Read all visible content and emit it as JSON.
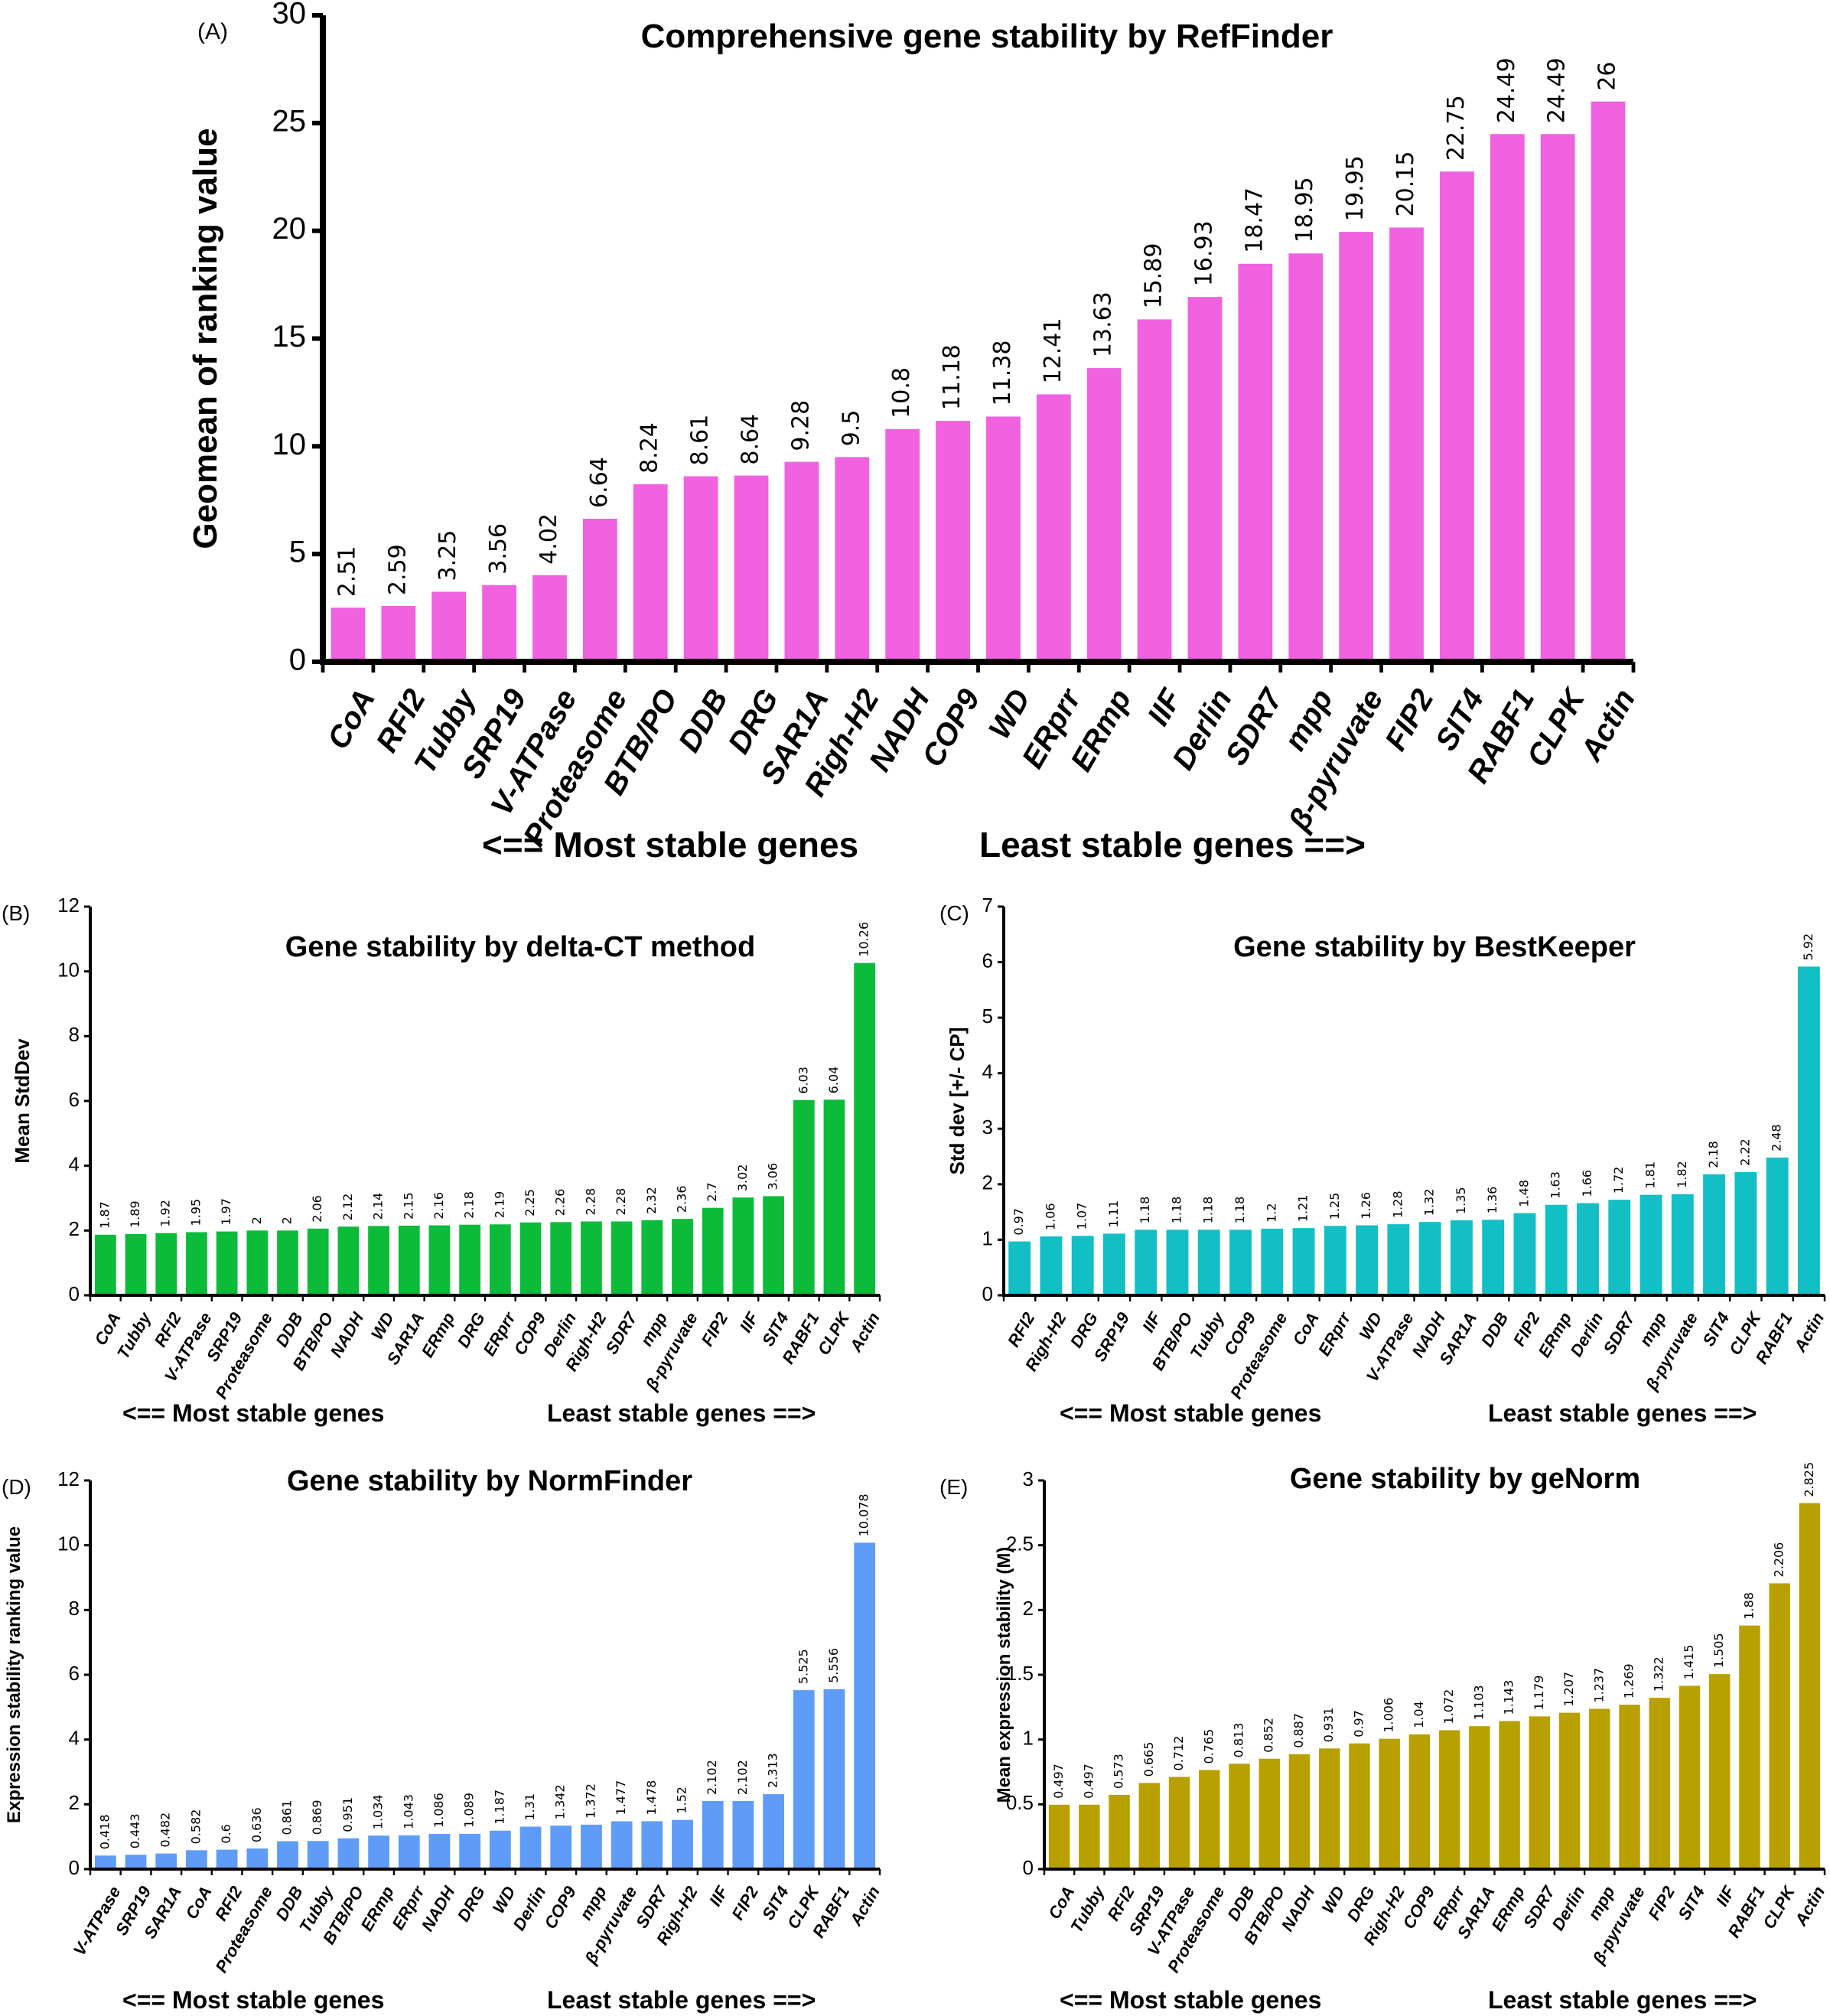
{
  "figure": {
    "footer_left": "<== Most stable genes",
    "footer_right": "Least stable genes ==>"
  },
  "chart_data": [
    {
      "id": "A",
      "panel_label": "(A)",
      "type": "bar",
      "title": "Comprehensive gene stability by RefFinder",
      "xlabel": "",
      "ylabel": "Geomean of ranking value",
      "ylim": [
        0,
        30
      ],
      "yticks": [
        0,
        5,
        10,
        15,
        20,
        25,
        30
      ],
      "grid": false,
      "color": "#f062e0",
      "categories": [
        "CoA",
        "RFI2",
        "Tubby",
        "SRP19",
        "V-ATPase",
        "Proteasome",
        "BTB/PO",
        "DDB",
        "DRG",
        "SAR1A",
        "Righ-H2",
        "NADH",
        "COP9",
        "WD",
        "ERprr",
        "ERmp",
        "IIF",
        "Derlin",
        "SDR7",
        "mpp",
        "β-pyruvate",
        "FIP2",
        "SIT4",
        "RABF1",
        "CLPK",
        "Actin"
      ],
      "values": [
        2.51,
        2.59,
        3.25,
        3.56,
        4.02,
        6.64,
        8.24,
        8.61,
        8.64,
        9.28,
        9.5,
        10.8,
        11.18,
        11.38,
        12.41,
        13.63,
        15.89,
        16.93,
        18.47,
        18.95,
        19.95,
        20.15,
        22.75,
        24.49,
        24.49,
        26
      ],
      "labels": [
        "2.51",
        "2.59",
        "3.25",
        "3.56",
        "4.02",
        "6.64",
        "8.24",
        "8.61",
        "8.64",
        "9.28",
        "9.5",
        "10.8",
        "11.18",
        "11.38",
        "12.41",
        "13.63",
        "15.89",
        "16.93",
        "18.47",
        "18.95",
        "19.95",
        "20.15",
        "22.75",
        "24.49",
        "24.49",
        "26"
      ]
    },
    {
      "id": "B",
      "panel_label": "(B)",
      "type": "bar",
      "title": "Gene stability by delta-CT method",
      "xlabel": "",
      "ylabel": "Mean StdDev",
      "ylim": [
        0,
        12
      ],
      "yticks": [
        0,
        2,
        4,
        6,
        8,
        10,
        12
      ],
      "grid": false,
      "color": "#0dbb3a",
      "categories": [
        "CoA",
        "Tubby",
        "RFI2",
        "V-ATPase",
        "SRP19",
        "Proteasome",
        "DDB",
        "BTB/PO",
        "NADH",
        "WD",
        "SAR1A",
        "ERmp",
        "DRG",
        "ERprr",
        "COP9",
        "Derlin",
        "Righ-H2",
        "SDR7",
        "mpp",
        "β-pyruvate",
        "FIP2",
        "IIF",
        "SIT4",
        "RABF1",
        "CLPK",
        "Actin"
      ],
      "values": [
        1.87,
        1.89,
        1.92,
        1.95,
        1.97,
        2,
        2,
        2.06,
        2.12,
        2.14,
        2.15,
        2.16,
        2.18,
        2.19,
        2.25,
        2.26,
        2.28,
        2.28,
        2.32,
        2.36,
        2.7,
        3.02,
        3.06,
        6.03,
        6.04,
        10.26
      ],
      "labels": [
        "1.87",
        "1.89",
        "1.92",
        "1.95",
        "1.97",
        "2",
        "2",
        "2.06",
        "2.12",
        "2.14",
        "2.15",
        "2.16",
        "2.18",
        "2.19",
        "2.25",
        "2.26",
        "2.28",
        "2.28",
        "2.32",
        "2.36",
        "2.7",
        "3.02",
        "3.06",
        "6.03",
        "6.04",
        "10.26"
      ]
    },
    {
      "id": "C",
      "panel_label": "(C)",
      "type": "bar",
      "title": "Gene stability by BestKeeper",
      "xlabel": "",
      "ylabel": "Std dev [+/- CP]",
      "ylim": [
        0,
        7
      ],
      "yticks": [
        0,
        1,
        2,
        3,
        4,
        5,
        6,
        7
      ],
      "grid": false,
      "color": "#12bfc4",
      "categories": [
        "RFI2",
        "Righ-H2",
        "DRG",
        "SRP19",
        "IIF",
        "BTB/PO",
        "Tubby",
        "COP9",
        "Proteasome",
        "CoA",
        "ERprr",
        "WD",
        "V-ATPase",
        "NADH",
        "SAR1A",
        "DDB",
        "FIP2",
        "ERmp",
        "Derlin",
        "SDR7",
        "mpp",
        "β-pyruvate",
        "SIT4",
        "CLPK",
        "RABF1",
        "Actin"
      ],
      "values": [
        0.97,
        1.06,
        1.07,
        1.11,
        1.18,
        1.18,
        1.18,
        1.18,
        1.2,
        1.21,
        1.25,
        1.26,
        1.28,
        1.32,
        1.35,
        1.36,
        1.48,
        1.63,
        1.66,
        1.72,
        1.81,
        1.82,
        2.18,
        2.22,
        2.48,
        5.92
      ],
      "labels": [
        "0.97",
        "1.06",
        "1.07",
        "1.11",
        "1.18",
        "1.18",
        "1.18",
        "1.18",
        "1.2",
        "1.21",
        "1.25",
        "1.26",
        "1.28",
        "1.32",
        "1.35",
        "1.36",
        "1.48",
        "1.63",
        "1.66",
        "1.72",
        "1.81",
        "1.82",
        "2.18",
        "2.22",
        "2.48",
        "5.92"
      ]
    },
    {
      "id": "D",
      "panel_label": "(D)",
      "type": "bar",
      "title": "Gene stability by NormFinder",
      "xlabel": "",
      "ylabel": "Expression stability ranking value",
      "ylim": [
        0,
        12
      ],
      "yticks": [
        0,
        2,
        4,
        6,
        8,
        10,
        12
      ],
      "grid": false,
      "color": "#5f9cf8",
      "categories": [
        "V-ATPase",
        "SRP19",
        "SAR1A",
        "CoA",
        "RFI2",
        "Proteasome",
        "DDB",
        "Tubby",
        "BTB/PO",
        "ERmp",
        "ERprr",
        "NADH",
        "DRG",
        "WD",
        "Derlin",
        "COP9",
        "mpp",
        "β-pyruvate",
        "SDR7",
        "Righ-H2",
        "IIF",
        "FIP2",
        "SIT4",
        "CLPK",
        "RABF1",
        "Actin"
      ],
      "values": [
        0.418,
        0.443,
        0.482,
        0.582,
        0.6,
        0.636,
        0.861,
        0.869,
        0.951,
        1.034,
        1.043,
        1.086,
        1.089,
        1.187,
        1.31,
        1.342,
        1.372,
        1.477,
        1.478,
        1.52,
        2.102,
        2.102,
        2.313,
        5.525,
        5.556,
        10.078
      ],
      "labels": [
        "0.418",
        "0.443",
        "0.482",
        "0.582",
        "0.6",
        "0.636",
        "0.861",
        "0.869",
        "0.951",
        "1.034",
        "1.043",
        "1.086",
        "1.089",
        "1.187",
        "1.31",
        "1.342",
        "1.372",
        "1.477",
        "1.478",
        "1.52",
        "2.102",
        "2.102",
        "2.313",
        "5.525",
        "5.556",
        "10.078"
      ]
    },
    {
      "id": "E",
      "panel_label": "(E)",
      "type": "bar",
      "title": "Gene stability by geNorm",
      "xlabel": "",
      "ylabel": "Mean expression stability (M)",
      "ylim": [
        0,
        3
      ],
      "yticks": [
        0,
        0.5,
        1,
        1.5,
        2,
        2.5,
        3
      ],
      "grid": false,
      "color": "#b8a000",
      "categories": [
        "CoA",
        "Tubby",
        "RFI2",
        "SRP19",
        "V-ATPase",
        "Proteasome",
        "DDB",
        "BTB/PO",
        "NADH",
        "WD",
        "DRG",
        "Righ-H2",
        "COP9",
        "ERprr",
        "SAR1A",
        "ERmp",
        "SDR7",
        "Derlin",
        "mpp",
        "β-pyruvate",
        "FIP2",
        "SIT4",
        "IIF",
        "RABF1",
        "CLPK",
        "Actin"
      ],
      "values": [
        0.497,
        0.497,
        0.573,
        0.665,
        0.712,
        0.765,
        0.813,
        0.852,
        0.887,
        0.931,
        0.97,
        1.006,
        1.04,
        1.072,
        1.103,
        1.143,
        1.179,
        1.207,
        1.237,
        1.269,
        1.322,
        1.415,
        1.505,
        1.88,
        2.206,
        2.825
      ],
      "labels": [
        "0.497",
        "0.497",
        "0.573",
        "0.665",
        "0.712",
        "0.765",
        "0.813",
        "0.852",
        "0.887",
        "0.931",
        "0.97",
        "1.006",
        "1.04",
        "1.072",
        "1.103",
        "1.143",
        "1.179",
        "1.207",
        "1.237",
        "1.269",
        "1.322",
        "1.415",
        "1.505",
        "1.88",
        "2.206",
        "2.825"
      ]
    }
  ]
}
